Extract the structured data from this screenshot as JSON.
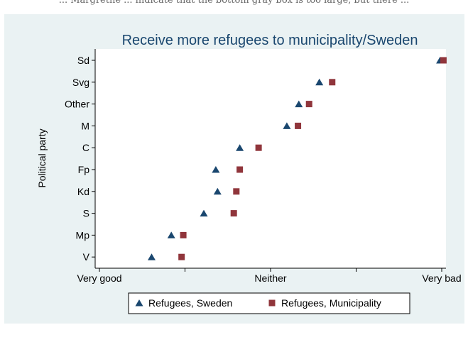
{
  "header_text": "... Margrethe ... indicate that the bottom gray box is too large, but there ...",
  "chart_data": {
    "type": "scatter",
    "title": "Receive more refugees to municipality/Sweden",
    "xlabel": "",
    "ylabel": "Political party",
    "x_ticks": [
      {
        "value": 1,
        "label": "Very good"
      },
      {
        "value": 2,
        "label": ""
      },
      {
        "value": 3,
        "label": "Neither"
      },
      {
        "value": 4,
        "label": ""
      },
      {
        "value": 5,
        "label": "Very bad"
      }
    ],
    "xlim": [
      1,
      5
    ],
    "categories": [
      "Sd",
      "Svg",
      "Other",
      "M",
      "C",
      "Fp",
      "Kd",
      "S",
      "Mp",
      "V"
    ],
    "series": [
      {
        "name": "Refugees, Sweden",
        "marker": "triangle",
        "color": "#1a476f",
        "values": [
          4.98,
          3.57,
          3.33,
          3.19,
          2.64,
          2.36,
          2.38,
          2.22,
          1.84,
          1.61
        ]
      },
      {
        "name": "Refugees, Municipality",
        "marker": "square",
        "color": "#90353b",
        "values": [
          5.02,
          3.72,
          3.45,
          3.32,
          2.86,
          2.64,
          2.6,
          2.57,
          1.98,
          1.96
        ]
      }
    ],
    "grid": false,
    "legend_position": "bottom"
  },
  "colors": {
    "outer_background": "#eaf2f3",
    "plot_background": "#ffffff",
    "title": "#1a476f"
  }
}
